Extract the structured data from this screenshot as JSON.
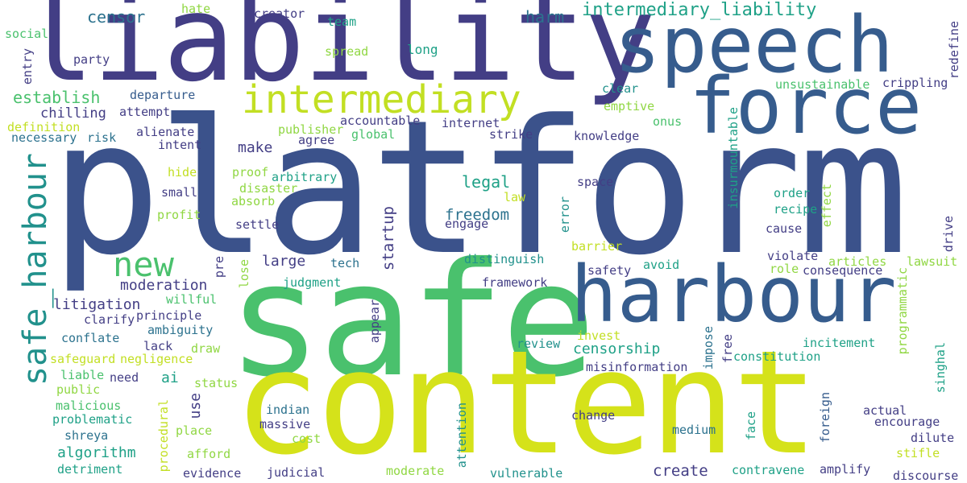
{
  "palette": {
    "purple": "#472d7b",
    "indigo": "#433e85",
    "blue": "#3b528b",
    "steel": "#365c8d",
    "slate": "#2c728e",
    "teal": "#21918c",
    "sea": "#1fa187",
    "green": "#35b779",
    "emerald": "#4ac16d",
    "lime": "#90d743",
    "yellowgreen": "#c2df23",
    "yellow": "#d5e21a"
  },
  "words": [
    {
      "text": "platform",
      "color": "blue"
    },
    {
      "text": "safe",
      "color": "emerald"
    },
    {
      "text": "content",
      "color": "yellow"
    },
    {
      "text": "liability",
      "color": "indigo"
    },
    {
      "text": "speech",
      "color": "steel"
    },
    {
      "text": "force",
      "color": "steel"
    },
    {
      "text": "harbour",
      "color": "steel"
    },
    {
      "text": "intermediary",
      "color": "yellowgreen"
    },
    {
      "text": "new",
      "color": "emerald"
    },
    {
      "text": "safe_harbour",
      "color": "teal"
    },
    {
      "text": "intermediary_liability",
      "color": "sea"
    },
    {
      "text": "censor",
      "color": "slate"
    },
    {
      "text": "hate",
      "color": "lime"
    },
    {
      "text": "creator",
      "color": "indigo"
    },
    {
      "text": "team",
      "color": "sea"
    },
    {
      "text": "harm",
      "color": "slate"
    },
    {
      "text": "social",
      "color": "emerald"
    },
    {
      "text": "spread",
      "color": "lime"
    },
    {
      "text": "long",
      "color": "sea"
    },
    {
      "text": "redefine",
      "color": "indigo"
    },
    {
      "text": "party",
      "color": "indigo"
    },
    {
      "text": "entry",
      "color": "indigo"
    },
    {
      "text": "establish",
      "color": "emerald"
    },
    {
      "text": "departure",
      "color": "steel"
    },
    {
      "text": "clear",
      "color": "teal"
    },
    {
      "text": "unsustainable",
      "color": "emerald"
    },
    {
      "text": "crippling",
      "color": "indigo"
    },
    {
      "text": "chilling",
      "color": "indigo"
    },
    {
      "text": "attempt",
      "color": "indigo"
    },
    {
      "text": "emptive",
      "color": "lime"
    },
    {
      "text": "definition",
      "color": "yellowgreen"
    },
    {
      "text": "accountable",
      "color": "indigo"
    },
    {
      "text": "internet",
      "color": "indigo"
    },
    {
      "text": "onus",
      "color": "emerald"
    },
    {
      "text": "necessary",
      "color": "slate"
    },
    {
      "text": "risk",
      "color": "slate"
    },
    {
      "text": "alienate",
      "color": "indigo"
    },
    {
      "text": "publisher",
      "color": "lime"
    },
    {
      "text": "global",
      "color": "emerald"
    },
    {
      "text": "strike",
      "color": "indigo"
    },
    {
      "text": "knowledge",
      "color": "indigo"
    },
    {
      "text": "insurmountable",
      "color": "sea"
    },
    {
      "text": "intent",
      "color": "indigo"
    },
    {
      "text": "agree",
      "color": "indigo"
    },
    {
      "text": "make",
      "color": "indigo"
    },
    {
      "text": "hide",
      "color": "yellowgreen"
    },
    {
      "text": "proof",
      "color": "lime"
    },
    {
      "text": "arbitrary",
      "color": "sea"
    },
    {
      "text": "legal",
      "color": "sea"
    },
    {
      "text": "space",
      "color": "indigo"
    },
    {
      "text": "small",
      "color": "indigo"
    },
    {
      "text": "disaster",
      "color": "lime"
    },
    {
      "text": "law",
      "color": "yellowgreen"
    },
    {
      "text": "order",
      "color": "sea"
    },
    {
      "text": "effect",
      "color": "lime"
    },
    {
      "text": "absorb",
      "color": "lime"
    },
    {
      "text": "startup",
      "color": "indigo"
    },
    {
      "text": "freedom",
      "color": "slate"
    },
    {
      "text": "error",
      "color": "teal"
    },
    {
      "text": "recipe",
      "color": "sea"
    },
    {
      "text": "profit",
      "color": "lime"
    },
    {
      "text": "settle",
      "color": "indigo"
    },
    {
      "text": "engage",
      "color": "indigo"
    },
    {
      "text": "drive",
      "color": "indigo"
    },
    {
      "text": "cause",
      "color": "indigo"
    },
    {
      "text": "barrier",
      "color": "yellowgreen"
    },
    {
      "text": "distinguish",
      "color": "teal"
    },
    {
      "text": "violate",
      "color": "indigo"
    },
    {
      "text": "articles",
      "color": "lime"
    },
    {
      "text": "lawsuit",
      "color": "lime"
    },
    {
      "text": "large",
      "color": "indigo"
    },
    {
      "text": "tech",
      "color": "slate"
    },
    {
      "text": "avoid",
      "color": "sea"
    },
    {
      "text": "role",
      "color": "lime"
    },
    {
      "text": "consequence",
      "color": "indigo"
    },
    {
      "text": "pre",
      "color": "indigo"
    },
    {
      "text": "lose",
      "color": "lime"
    },
    {
      "text": "safety",
      "color": "indigo"
    },
    {
      "text": "moderation",
      "color": "indigo"
    },
    {
      "text": "judgment",
      "color": "sea"
    },
    {
      "text": "framework",
      "color": "indigo"
    },
    {
      "text": "programmatic",
      "color": "lime"
    },
    {
      "text": "litigation",
      "color": "indigo"
    },
    {
      "text": "willful",
      "color": "emerald"
    },
    {
      "text": "principle",
      "color": "indigo"
    },
    {
      "text": "appear",
      "color": "indigo"
    },
    {
      "text": "clarify",
      "color": "indigo"
    },
    {
      "text": "ambiguity",
      "color": "slate"
    },
    {
      "text": "conflate",
      "color": "slate"
    },
    {
      "text": "invest",
      "color": "yellowgreen"
    },
    {
      "text": "lack",
      "color": "indigo"
    },
    {
      "text": "draw",
      "color": "lime"
    },
    {
      "text": "review",
      "color": "teal"
    },
    {
      "text": "censorship",
      "color": "sea"
    },
    {
      "text": "impose",
      "color": "slate"
    },
    {
      "text": "free",
      "color": "indigo"
    },
    {
      "text": "incitement",
      "color": "sea"
    },
    {
      "text": "singhal",
      "color": "sea"
    },
    {
      "text": "safeguard",
      "color": "yellowgreen"
    },
    {
      "text": "negligence",
      "color": "yellowgreen"
    },
    {
      "text": "constitution",
      "color": "sea"
    },
    {
      "text": "misinformation",
      "color": "indigo"
    },
    {
      "text": "ai",
      "color": "sea"
    },
    {
      "text": "liable",
      "color": "emerald"
    },
    {
      "text": "need",
      "color": "indigo"
    },
    {
      "text": "status",
      "color": "lime"
    },
    {
      "text": "public",
      "color": "lime"
    },
    {
      "text": "use",
      "color": "indigo"
    },
    {
      "text": "malicious",
      "color": "emerald"
    },
    {
      "text": "procedural",
      "color": "yellowgreen"
    },
    {
      "text": "problematic",
      "color": "sea"
    },
    {
      "text": "indian",
      "color": "slate"
    },
    {
      "text": "massive",
      "color": "indigo"
    },
    {
      "text": "attention",
      "color": "teal"
    },
    {
      "text": "change",
      "color": "indigo"
    },
    {
      "text": "foreign",
      "color": "steel"
    },
    {
      "text": "face",
      "color": "sea"
    },
    {
      "text": "actual",
      "color": "indigo"
    },
    {
      "text": "encourage",
      "color": "indigo"
    },
    {
      "text": "place",
      "color": "lime"
    },
    {
      "text": "shreya",
      "color": "slate"
    },
    {
      "text": "medium",
      "color": "slate"
    },
    {
      "text": "dilute",
      "color": "indigo"
    },
    {
      "text": "algorithm",
      "color": "sea"
    },
    {
      "text": "cost",
      "color": "lime"
    },
    {
      "text": "afford",
      "color": "lime"
    },
    {
      "text": "stifle",
      "color": "yellowgreen"
    },
    {
      "text": "create",
      "color": "indigo"
    },
    {
      "text": "detriment",
      "color": "sea"
    },
    {
      "text": "evidence",
      "color": "indigo"
    },
    {
      "text": "judicial",
      "color": "indigo"
    },
    {
      "text": "moderate",
      "color": "lime"
    },
    {
      "text": "vulnerable",
      "color": "teal"
    },
    {
      "text": "contravene",
      "color": "sea"
    },
    {
      "text": "amplify",
      "color": "indigo"
    },
    {
      "text": "discourse",
      "color": "indigo"
    }
  ]
}
